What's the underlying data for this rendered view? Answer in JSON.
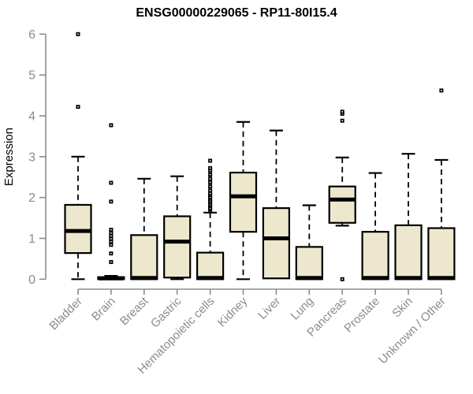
{
  "chart_data": {
    "type": "boxplot",
    "title": "ENSG00000229065 - RP11-80I15.4",
    "ylabel": "Expression",
    "xlabel": "",
    "ylim": [
      0,
      6
    ],
    "yticks": [
      0,
      1,
      2,
      3,
      4,
      5,
      6
    ],
    "grid": false,
    "legend": false,
    "colors": {
      "box_fill": "#EDE8CD",
      "box_border": "#000000",
      "median": "#000000",
      "outlier": "#000000",
      "axis": "#8C8C8C",
      "tick_label": "#8C8C8C",
      "title": "#000000"
    },
    "categories": [
      "Bladder",
      "Brain",
      "Breast",
      "Gastric",
      "Hematopoietic cells",
      "Kidney",
      "Liver",
      "Lung",
      "Pancreas",
      "Prostate",
      "Skin",
      "Unknown / Other"
    ],
    "series": [
      {
        "name": "Bladder",
        "whisker_low": 0,
        "q1": 0.64,
        "median": 1.18,
        "q3": 1.82,
        "whisker_high": 3.0,
        "outliers": [
          4.22,
          6.0
        ]
      },
      {
        "name": "Brain",
        "whisker_low": 0,
        "q1": 0,
        "median": 0.02,
        "q3": 0.05,
        "whisker_high": 0.08,
        "outliers": [
          0.42,
          0.63,
          0.84,
          0.92,
          0.99,
          1.06,
          1.13,
          1.21,
          1.9,
          2.36,
          3.77
        ]
      },
      {
        "name": "Breast",
        "whisker_low": 0,
        "q1": 0,
        "median": 0.03,
        "q3": 1.08,
        "whisker_high": 2.46,
        "outliers": []
      },
      {
        "name": "Gastric",
        "whisker_low": 0,
        "q1": 0.04,
        "median": 0.92,
        "q3": 1.54,
        "whisker_high": 2.52,
        "outliers": []
      },
      {
        "name": "Hematopoietic cells",
        "whisker_low": 0,
        "q1": 0,
        "median": 0.03,
        "q3": 0.65,
        "whisker_high": 1.63,
        "outliers": [
          1.7,
          1.74,
          1.79,
          1.83,
          1.88,
          1.92,
          1.97,
          2.01,
          2.06,
          2.1,
          2.17,
          2.27,
          2.37,
          2.46,
          2.56,
          2.66,
          2.72,
          2.9
        ]
      },
      {
        "name": "Kidney",
        "whisker_low": 0,
        "q1": 1.16,
        "median": 2.03,
        "q3": 2.61,
        "whisker_high": 3.85,
        "outliers": []
      },
      {
        "name": "Liver",
        "whisker_low": 0,
        "q1": 0.02,
        "median": 1.0,
        "q3": 1.74,
        "whisker_high": 3.64,
        "outliers": []
      },
      {
        "name": "Lung",
        "whisker_low": 0,
        "q1": 0,
        "median": 0.03,
        "q3": 0.79,
        "whisker_high": 1.81,
        "outliers": []
      },
      {
        "name": "Pancreas",
        "whisker_low": 1.31,
        "q1": 1.38,
        "median": 1.95,
        "q3": 2.27,
        "whisker_high": 2.98,
        "outliers": [
          0.0,
          3.88,
          4.05,
          4.1
        ]
      },
      {
        "name": "Prostate",
        "whisker_low": 0,
        "q1": 0,
        "median": 0.03,
        "q3": 1.16,
        "whisker_high": 2.6,
        "outliers": []
      },
      {
        "name": "Skin",
        "whisker_low": 0,
        "q1": 0,
        "median": 0.03,
        "q3": 1.32,
        "whisker_high": 3.07,
        "outliers": []
      },
      {
        "name": "Unknown / Other",
        "whisker_low": 0,
        "q1": 0,
        "median": 0.03,
        "q3": 1.25,
        "whisker_high": 2.92,
        "outliers": [
          4.62
        ]
      }
    ]
  }
}
